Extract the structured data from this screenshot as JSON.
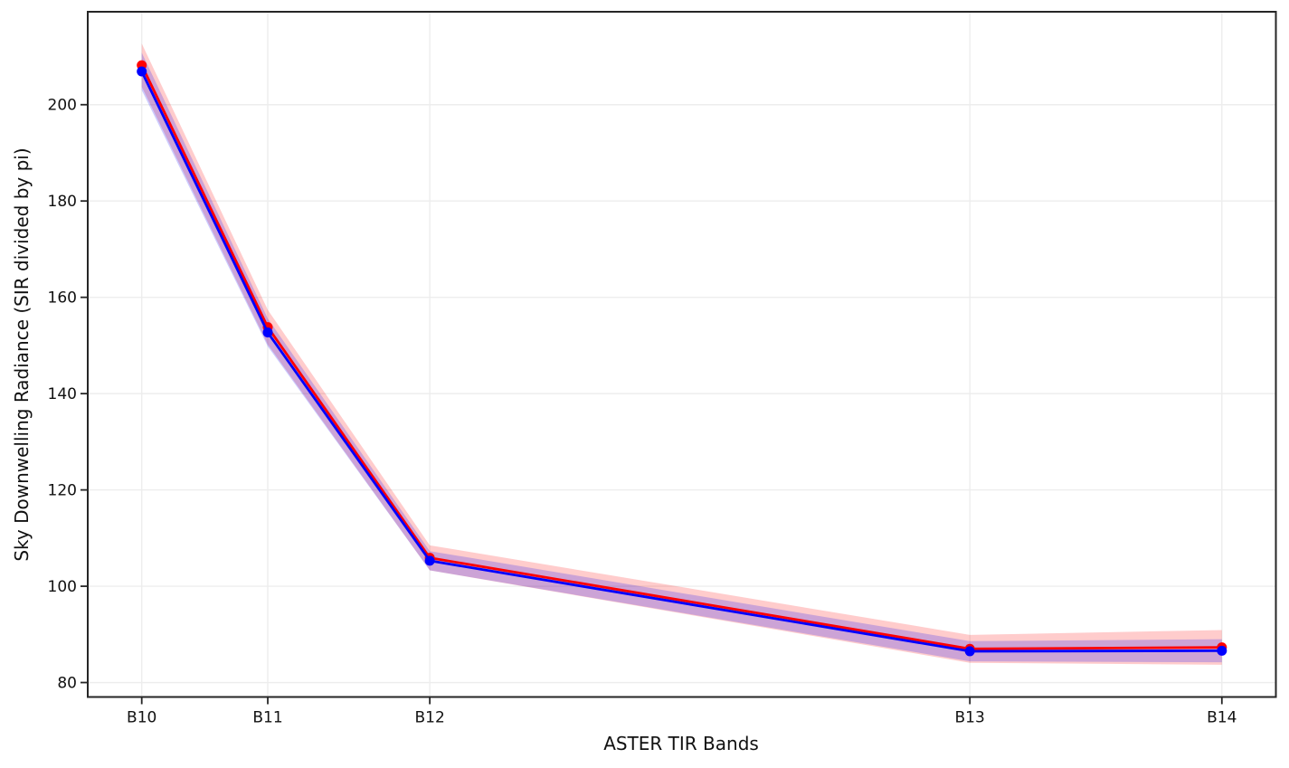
{
  "figure": {
    "background": "#ffffff",
    "title": ""
  },
  "chart_data": {
    "type": "line",
    "title": "",
    "xlabel": "ASTER TIR Bands",
    "ylabel": "Sky Downwelling Radiance (SIR divided by pi)",
    "categories": [
      "B10",
      "B11",
      "B12",
      "B13",
      "B14"
    ],
    "x": [
      8.3,
      8.65,
      9.1,
      10.6,
      11.3
    ],
    "series": [
      {
        "name": "red-series",
        "color": "#ff0000",
        "values": [
          208.2,
          153.8,
          105.9,
          87.0,
          87.3
        ],
        "errors": [
          4.5,
          3.6,
          2.6,
          2.9,
          3.6
        ]
      },
      {
        "name": "blue-series",
        "color": "#0000ff",
        "values": [
          206.9,
          152.7,
          105.3,
          86.5,
          86.6
        ],
        "errors": [
          3.9,
          2.9,
          2.0,
          2.1,
          2.4
        ]
      }
    ],
    "yticks": [
      80,
      100,
      120,
      140,
      160,
      180,
      200
    ],
    "ylim": [
      77,
      219.3
    ],
    "xlim": [
      8.15,
      11.45
    ],
    "grid": true,
    "grid_color": "#ededed",
    "band_opacity": 0.2,
    "marker": "circle",
    "marker_radius": 5.5,
    "line_width": 2.8,
    "spine_color": "#262626",
    "text_color": "#111111",
    "tick_font_size": 17,
    "label_font_size": 20,
    "legend": "none"
  }
}
